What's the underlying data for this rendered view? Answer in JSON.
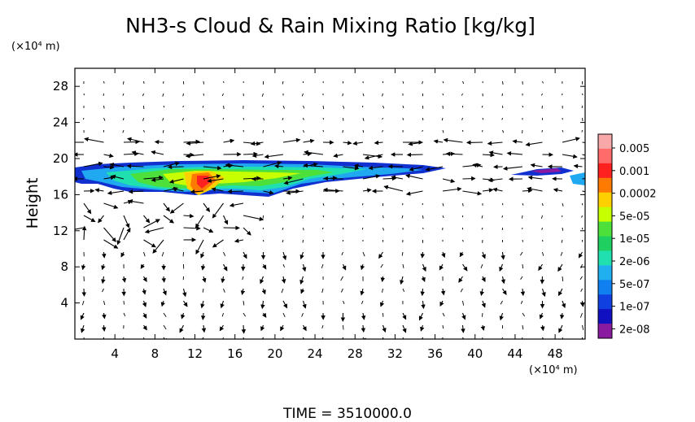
{
  "chart_data": {
    "type": "heatmap",
    "title": "NH3-s Cloud & Rain Mixing Ratio [kg/kg]",
    "ylabel": "Height",
    "x_unit": "(×10⁴ m)",
    "y_unit": "(×10⁴ m)",
    "xlim": [
      0,
      51
    ],
    "ylim": [
      0,
      30
    ],
    "x_ticks": [
      4,
      8,
      12,
      16,
      20,
      24,
      28,
      32,
      36,
      40,
      44,
      48
    ],
    "y_ticks": [
      4,
      8,
      12,
      16,
      20,
      24,
      28
    ],
    "footer": "TIME = 3510000.0",
    "colorbar": {
      "labels": [
        "0.005",
        "0.001",
        "0.0002",
        "5e-05",
        "1e-05",
        "2e-06",
        "5e-07",
        "1e-07",
        "2e-08"
      ],
      "colors": [
        "#f8a8a8",
        "#ff6a6a",
        "#ff2020",
        "#ff7a00",
        "#ffd000",
        "#c8ff00",
        "#4ee03a",
        "#1fd060",
        "#20e0b0",
        "#20b0f0",
        "#1080f0",
        "#1040e0",
        "#1010c0",
        "#8a1aa0"
      ]
    },
    "cloud_layer": {
      "approx_height_range": [
        16,
        19.5
      ],
      "approx_x_range": [
        0,
        51
      ],
      "peak_x": 12,
      "peak_level": "0.001"
    },
    "wind_vectors": "present",
    "grid": false
  }
}
